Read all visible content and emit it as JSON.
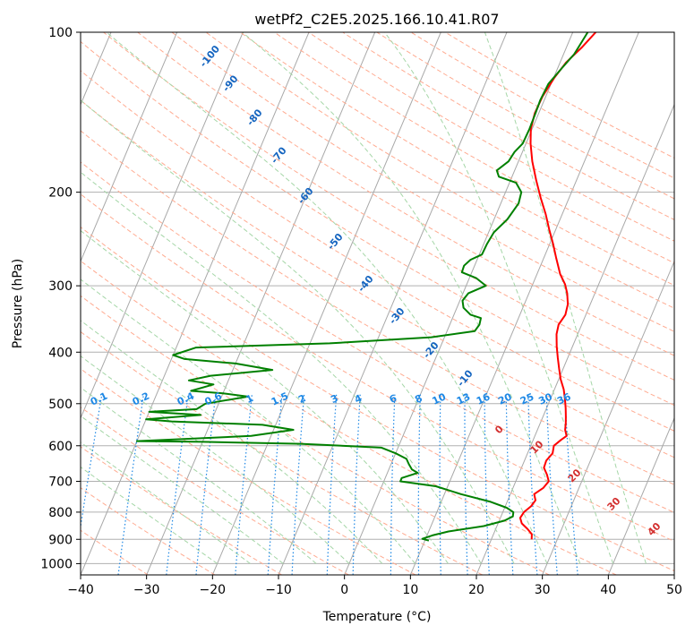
{
  "chart_data": {
    "type": "line",
    "title": "wetPf2_C2E5.2025.166.10.41.R07",
    "xlabel": "Temperature (°C)",
    "ylabel": "Pressure (hPa)",
    "xlim": [
      -40,
      50
    ],
    "ylim": [
      1050,
      100
    ],
    "y_scale": "log",
    "grid": true,
    "x_ticks": [
      -40,
      -30,
      -20,
      -10,
      0,
      10,
      20,
      30,
      40,
      50
    ],
    "y_ticks": [
      100,
      200,
      300,
      400,
      500,
      600,
      700,
      800,
      900,
      1000
    ],
    "colors": {
      "temperature": "#ff0000",
      "dewpoint": "#008000",
      "dry_adiabats": "#ffab91",
      "moist_adiabats": "#a5d6a7",
      "mixing_ratio": "#1e88e5",
      "isotherms": "#9e9e9e",
      "dry_adiabat_labels": "#d32f2f",
      "moist_adiabat_labels": "#1565c0",
      "mixing_ratio_labels": "#1e88e5"
    },
    "mixing_ratio_labels": [
      "0.1",
      "0.2",
      "0.4",
      "0.6",
      "1",
      "1.5",
      "2",
      "3",
      "4",
      "6",
      "8",
      "10",
      "13",
      "16",
      "20",
      "25",
      "30",
      "36"
    ],
    "mixing_ratio_values": [
      0.1,
      0.2,
      0.4,
      0.6,
      1,
      1.5,
      2,
      3,
      4,
      6,
      8,
      10,
      13,
      16,
      20,
      25,
      30,
      36
    ],
    "dry_adiabat_labels": [
      "0",
      "10",
      "20",
      "30",
      "40"
    ],
    "moist_adiabat_labels": [
      "-100",
      "-90",
      "-80",
      "-70",
      "-60",
      "-50",
      "-40",
      "-30",
      "-20",
      "-10"
    ],
    "series": [
      {
        "key": "temperature",
        "points": [
          [
            26.1,
            900
          ],
          [
            25.8,
            880
          ],
          [
            24.8,
            860
          ],
          [
            23.6,
            840
          ],
          [
            23.0,
            820
          ],
          [
            23.2,
            800
          ],
          [
            23.9,
            780
          ],
          [
            24.2,
            760
          ],
          [
            23.6,
            740
          ],
          [
            24.6,
            720
          ],
          [
            25.0,
            700
          ],
          [
            24.3,
            680
          ],
          [
            23.4,
            660
          ],
          [
            23.3,
            640
          ],
          [
            23.8,
            620
          ],
          [
            23.5,
            600
          ],
          [
            24.2,
            585
          ],
          [
            24.8,
            575
          ],
          [
            24.2,
            560
          ],
          [
            23.9,
            545
          ],
          [
            23.5,
            530
          ],
          [
            22.9,
            510
          ],
          [
            22.2,
            490
          ],
          [
            21.4,
            470
          ],
          [
            20.3,
            450
          ],
          [
            19.4,
            430
          ],
          [
            18.5,
            410
          ],
          [
            17.6,
            390
          ],
          [
            16.8,
            370
          ],
          [
            16.5,
            355
          ],
          [
            16.9,
            340
          ],
          [
            16.6,
            325
          ],
          [
            15.8,
            310
          ],
          [
            14.9,
            298
          ],
          [
            13.5,
            285
          ],
          [
            11.8,
            265
          ],
          [
            10.5,
            250
          ],
          [
            9.0,
            235
          ],
          [
            7.5,
            220
          ],
          [
            5.7,
            205
          ],
          [
            3.9,
            190
          ],
          [
            2.1,
            175
          ],
          [
            0.7,
            162
          ],
          [
            -0.2,
            152
          ],
          [
            -0.6,
            142
          ],
          [
            -0.5,
            132
          ],
          [
            0.1,
            122
          ],
          [
            0.9,
            114
          ],
          [
            2.3,
            107
          ],
          [
            3.3,
            101
          ],
          [
            3.8,
            98
          ]
        ]
      },
      {
        "key": "dewpoint",
        "points": [
          [
            10.6,
            905
          ],
          [
            9.5,
            898
          ],
          [
            10.8,
            885
          ],
          [
            13.0,
            870
          ],
          [
            18.0,
            850
          ],
          [
            20.8,
            830
          ],
          [
            21.8,
            815
          ],
          [
            21.6,
            800
          ],
          [
            20.3,
            785
          ],
          [
            17.5,
            765
          ],
          [
            12.5,
            740
          ],
          [
            8.2,
            715
          ],
          [
            2.5,
            700
          ],
          [
            2.5,
            690
          ],
          [
            4.6,
            675
          ],
          [
            3.5,
            665
          ],
          [
            2.7,
            650
          ],
          [
            2.0,
            635
          ],
          [
            0.0,
            620
          ],
          [
            -2.5,
            605
          ],
          [
            -15.0,
            595
          ],
          [
            -30.0,
            590
          ],
          [
            -40.0,
            588
          ],
          [
            -23.0,
            575
          ],
          [
            -17.0,
            560
          ],
          [
            -22.0,
            548
          ],
          [
            -36.0,
            540
          ],
          [
            -40.0,
            535
          ],
          [
            -32.0,
            525
          ],
          [
            -40.0,
            518
          ],
          [
            -33.0,
            512
          ],
          [
            -32.0,
            500
          ],
          [
            -26.0,
            485
          ],
          [
            -30.0,
            478
          ],
          [
            -35.0,
            473
          ],
          [
            -32.0,
            460
          ],
          [
            -36.0,
            452
          ],
          [
            -33.0,
            443
          ],
          [
            -24.0,
            432
          ],
          [
            -30.0,
            420
          ],
          [
            -38.0,
            412
          ],
          [
            -40.0,
            405
          ],
          [
            -37.0,
            392
          ],
          [
            -17.0,
            385
          ],
          [
            -2.0,
            375
          ],
          [
            4.2,
            365
          ],
          [
            4.5,
            355
          ],
          [
            4.3,
            345
          ],
          [
            2.5,
            340
          ],
          [
            1.0,
            330
          ],
          [
            0.4,
            320
          ],
          [
            0.8,
            310
          ],
          [
            3.0,
            300
          ],
          [
            1.0,
            290
          ],
          [
            -1.5,
            283
          ],
          [
            -1.6,
            275
          ],
          [
            -1.0,
            268
          ],
          [
            0.4,
            262
          ],
          [
            0.5,
            250
          ],
          [
            0.8,
            238
          ],
          [
            2.0,
            225
          ],
          [
            2.7,
            210
          ],
          [
            2.4,
            200
          ],
          [
            1.0,
            192
          ],
          [
            -2.0,
            187
          ],
          [
            -2.7,
            182
          ],
          [
            -1.5,
            175
          ],
          [
            -1.2,
            168
          ],
          [
            -0.5,
            162
          ],
          [
            -0.4,
            152
          ],
          [
            -0.5,
            142
          ],
          [
            -0.6,
            134
          ],
          [
            -0.4,
            125
          ],
          [
            0.6,
            117
          ],
          [
            1.6,
            110
          ],
          [
            2.0,
            104
          ],
          [
            2.4,
            98
          ]
        ]
      }
    ]
  }
}
